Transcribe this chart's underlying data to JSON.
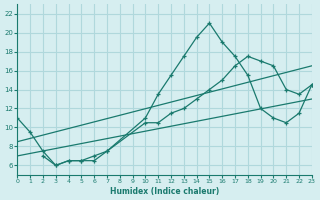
{
  "background_color": "#d6eef0",
  "grid_color": "#b0d8dc",
  "line_color": "#1a7a6e",
  "xlabel": "Humidex (Indice chaleur)",
  "xlim": [
    0,
    23
  ],
  "ylim": [
    5,
    23
  ],
  "yticks": [
    6,
    8,
    10,
    12,
    14,
    16,
    18,
    20,
    22
  ],
  "xticks": [
    0,
    1,
    2,
    3,
    4,
    5,
    6,
    7,
    8,
    9,
    10,
    11,
    12,
    13,
    14,
    15,
    16,
    17,
    18,
    19,
    20,
    21,
    22,
    23
  ],
  "line1_x": [
    0,
    1,
    2,
    3,
    4,
    5,
    6,
    7,
    10,
    11,
    12,
    13,
    14,
    15,
    16,
    17,
    18,
    19,
    20,
    21,
    22,
    23
  ],
  "line1_y": [
    11,
    9.5,
    7.5,
    6,
    6.5,
    6.5,
    7,
    7.5,
    11,
    13.5,
    15.5,
    17.5,
    19.5,
    21,
    19,
    17.5,
    15.5,
    12,
    11,
    10.5,
    11.5,
    14.5
  ],
  "line2_x": [
    2,
    3,
    4,
    5,
    6,
    7,
    10,
    11,
    12,
    13,
    14,
    15,
    16,
    17,
    18,
    19,
    20,
    21,
    22,
    23
  ],
  "line2_y": [
    7,
    6,
    6.5,
    6.5,
    6.5,
    7.5,
    10.5,
    10.5,
    11.5,
    12,
    13,
    14,
    15,
    16.5,
    17.5,
    17,
    16.5,
    14,
    13.5,
    14.5
  ],
  "line3_x": [
    0,
    23
  ],
  "line3_y": [
    7,
    13
  ],
  "line4_x": [
    0,
    23
  ],
  "line4_y": [
    8.5,
    16.5
  ]
}
